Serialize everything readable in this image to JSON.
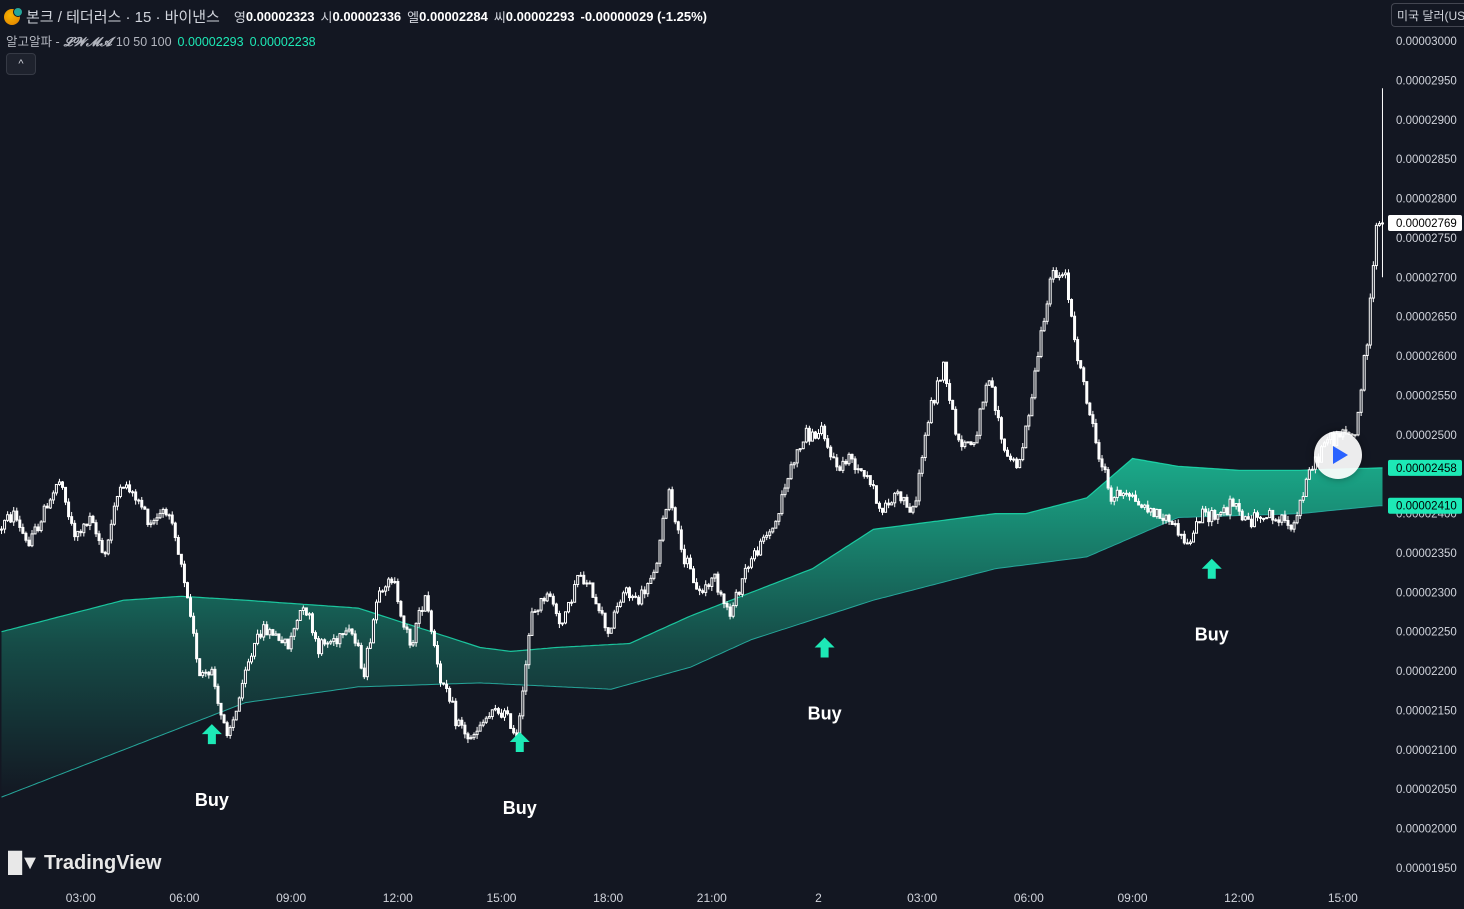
{
  "header": {
    "symbol": "본크 / 테더러스 · 15 · 바이낸스",
    "open_label": "영",
    "open_value": "0.00002323",
    "high_label": "시",
    "high_value": "0.00002336",
    "low_label": "엘",
    "low_value": "0.00002284",
    "close_label": "씨",
    "close_value": "0.00002293",
    "change": "-0.00000029 (-1.25%)"
  },
  "indicator": {
    "name": "알고알파 -",
    "type": "𝓛𝓦𝓜𝓐",
    "params": "10 50 100",
    "value1": "0.00002293",
    "value2": "0.00002238"
  },
  "currency_button": "미국 달러(USD)",
  "collapse_icon": "chevron-up-icon",
  "watermark": "TradingView",
  "colors": {
    "background": "#131722",
    "candle": "#ffffff",
    "band": "#1de9b6",
    "band_line": "#26a69a"
  },
  "chart_data": {
    "type": "candlestick",
    "y_axis": {
      "labels": [
        "0.00003000",
        "0.00002950",
        "0.00002900",
        "0.00002850",
        "0.00002800",
        "0.00002750",
        "0.00002700",
        "0.00002650",
        "0.00002600",
        "0.00002550",
        "0.00002500",
        "0.00002400",
        "0.00002350",
        "0.00002300",
        "0.00002250",
        "0.00002200",
        "0.00002150",
        "0.00002100",
        "0.00002050",
        "0.00002000",
        "0.00001950"
      ],
      "ylim": [
        1.94e-05,
        3.01e-05
      ]
    },
    "x_axis": {
      "labels": [
        "03:00",
        "06:00",
        "09:00",
        "12:00",
        "15:00",
        "18:00",
        "21:00",
        "2",
        "03:00",
        "06:00",
        "09:00",
        "12:00",
        "15:00"
      ]
    },
    "price_tags": [
      {
        "value": "0.00002769",
        "style": "last"
      },
      {
        "value": "0.00002458",
        "style": "indicator"
      },
      {
        "value": "0.00002410",
        "style": "indicator"
      }
    ],
    "candle_path_points": [
      [
        0,
        2380
      ],
      [
        5,
        2400
      ],
      [
        10,
        2360
      ],
      [
        17,
        2420
      ],
      [
        20,
        2440
      ],
      [
        25,
        2370
      ],
      [
        30,
        2390
      ],
      [
        35,
        2350
      ],
      [
        40,
        2440
      ],
      [
        45,
        2420
      ],
      [
        50,
        2390
      ],
      [
        55,
        2410
      ],
      [
        60,
        2330
      ],
      [
        66,
        2200
      ],
      [
        70,
        2200
      ],
      [
        75,
        2110
      ],
      [
        80,
        2180
      ],
      [
        85,
        2250
      ],
      [
        90,
        2250
      ],
      [
        95,
        2230
      ],
      [
        100,
        2290
      ],
      [
        105,
        2230
      ],
      [
        110,
        2240
      ],
      [
        115,
        2260
      ],
      [
        120,
        2200
      ],
      [
        125,
        2310
      ],
      [
        130,
        2310
      ],
      [
        135,
        2230
      ],
      [
        140,
        2300
      ],
      [
        145,
        2190
      ],
      [
        150,
        2140
      ],
      [
        155,
        2110
      ],
      [
        160,
        2140
      ],
      [
        165,
        2150
      ],
      [
        170,
        2120
      ],
      [
        175,
        2270
      ],
      [
        180,
        2300
      ],
      [
        185,
        2260
      ],
      [
        190,
        2320
      ],
      [
        195,
        2300
      ],
      [
        200,
        2250
      ],
      [
        205,
        2300
      ],
      [
        210,
        2290
      ],
      [
        215,
        2320
      ],
      [
        220,
        2430
      ],
      [
        225,
        2340
      ],
      [
        230,
        2300
      ],
      [
        235,
        2320
      ],
      [
        240,
        2270
      ],
      [
        245,
        2330
      ],
      [
        250,
        2360
      ],
      [
        255,
        2390
      ],
      [
        260,
        2460
      ],
      [
        265,
        2500
      ],
      [
        270,
        2500
      ],
      [
        275,
        2460
      ],
      [
        280,
        2470
      ],
      [
        285,
        2450
      ],
      [
        290,
        2400
      ],
      [
        295,
        2430
      ],
      [
        300,
        2400
      ],
      [
        305,
        2520
      ],
      [
        310,
        2590
      ],
      [
        315,
        2490
      ],
      [
        320,
        2490
      ],
      [
        325,
        2570
      ],
      [
        330,
        2480
      ],
      [
        335,
        2460
      ],
      [
        340,
        2580
      ],
      [
        345,
        2700
      ],
      [
        350,
        2700
      ],
      [
        355,
        2580
      ],
      [
        360,
        2490
      ],
      [
        365,
        2420
      ],
      [
        370,
        2430
      ],
      [
        375,
        2410
      ],
      [
        380,
        2400
      ],
      [
        385,
        2390
      ],
      [
        390,
        2360
      ],
      [
        395,
        2400
      ],
      [
        400,
        2400
      ],
      [
        405,
        2410
      ],
      [
        410,
        2390
      ],
      [
        415,
        2400
      ],
      [
        420,
        2390
      ],
      [
        425,
        2390
      ],
      [
        430,
        2450
      ],
      [
        435,
        2490
      ],
      [
        440,
        2500
      ],
      [
        445,
        2500
      ],
      [
        449,
        2620
      ],
      [
        452,
        2769
      ]
    ],
    "band_upper": [
      [
        0,
        2250
      ],
      [
        20,
        2270
      ],
      [
        40,
        2290
      ],
      [
        59,
        2295
      ],
      [
        80,
        2290
      ],
      [
        117,
        2280
      ],
      [
        137,
        2255
      ],
      [
        157,
        2230
      ],
      [
        167,
        2225
      ],
      [
        182,
        2230
      ],
      [
        206,
        2235
      ],
      [
        226,
        2270
      ],
      [
        246,
        2300
      ],
      [
        266,
        2330
      ],
      [
        286,
        2380
      ],
      [
        306,
        2390
      ],
      [
        326,
        2400
      ],
      [
        336,
        2400
      ],
      [
        356,
        2420
      ],
      [
        371,
        2470
      ],
      [
        386,
        2460
      ],
      [
        406,
        2455
      ],
      [
        426,
        2455
      ],
      [
        452,
        2458
      ]
    ],
    "band_lower": [
      [
        0,
        2040
      ],
      [
        40,
        2100
      ],
      [
        80,
        2160
      ],
      [
        117,
        2180
      ],
      [
        157,
        2185
      ],
      [
        200,
        2177
      ],
      [
        226,
        2205
      ],
      [
        246,
        2240
      ],
      [
        286,
        2290
      ],
      [
        326,
        2330
      ],
      [
        356,
        2345
      ],
      [
        386,
        2395
      ],
      [
        426,
        2400
      ],
      [
        452,
        2410
      ]
    ],
    "annotations": [
      {
        "text": "Buy",
        "icon": "arrow-up-icon",
        "bar": 69,
        "price": 2.12e-05
      },
      {
        "text": "Buy",
        "icon": "arrow-up-icon",
        "bar": 170,
        "price": 2.11e-05
      },
      {
        "text": "Buy",
        "icon": "arrow-up-icon",
        "bar": 270,
        "price": 2.23e-05
      },
      {
        "text": "Buy",
        "icon": "arrow-up-icon",
        "bar": 397,
        "price": 2.33e-05
      }
    ],
    "x_axis_tick_bars": [
      26,
      60,
      95,
      130,
      164,
      199,
      233,
      268,
      302,
      337,
      371,
      406,
      440
    ],
    "bars_total": 454
  }
}
